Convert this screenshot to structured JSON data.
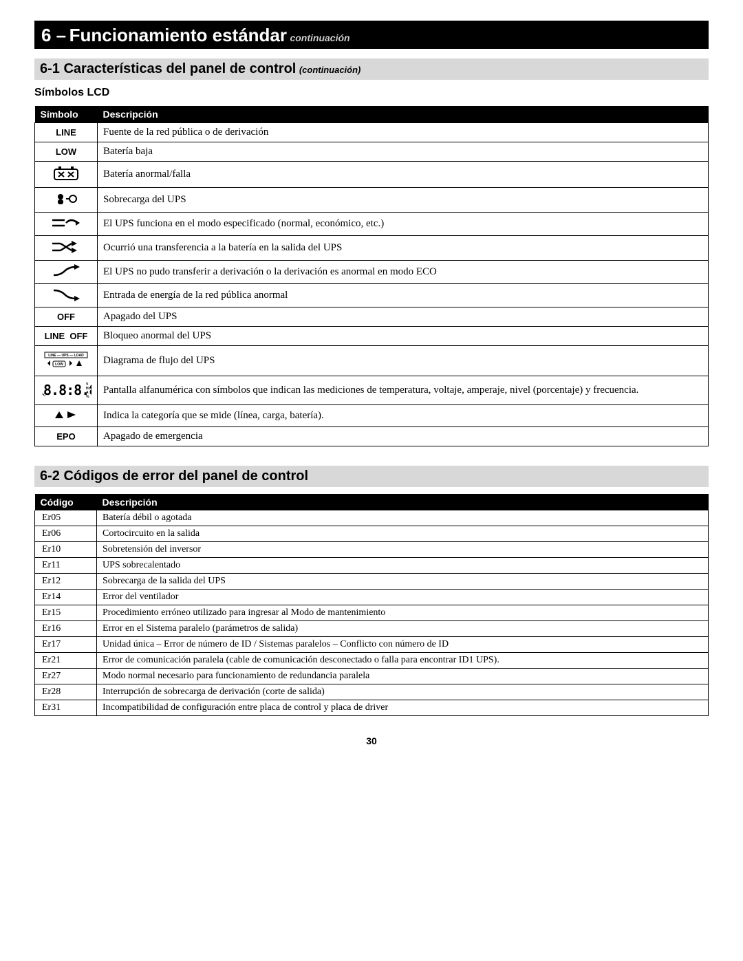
{
  "chapter": {
    "number": "6 –",
    "title": "Funcionamiento estándar",
    "continued": "continuación"
  },
  "section1": {
    "title": "6-1 Características del panel de control",
    "continued": "(continuación)",
    "subhead": "Símbolos LCD",
    "colA": "Símbolo",
    "colB": "Descripción",
    "rows": [
      {
        "symbol_text": "LINE",
        "icon": "text-line",
        "desc": "Fuente de la red pública o de derivación"
      },
      {
        "symbol_text": "LOW",
        "icon": "battery-low",
        "desc": "Batería baja"
      },
      {
        "symbol_text": "",
        "icon": "battery-fail",
        "desc": "Batería anormal/falla"
      },
      {
        "symbol_text": "",
        "icon": "overload",
        "desc": "Sobrecarga del UPS"
      },
      {
        "symbol_text": "",
        "icon": "mode-arrow",
        "desc": "El UPS funciona en el modo especificado (normal, económico, etc.)"
      },
      {
        "symbol_text": "",
        "icon": "cross-arrows",
        "desc": "Ocurrió una transferencia a la batería en la salida del UPS"
      },
      {
        "symbol_text": "",
        "icon": "wave-up",
        "desc": "El UPS no pudo transferir a derivación o la derivación es anormal en modo ECO"
      },
      {
        "symbol_text": "",
        "icon": "wave-down",
        "desc": "Entrada de energía de la red pública anormal"
      },
      {
        "symbol_text": "OFF",
        "icon": "text-off",
        "desc": "Apagado del UPS"
      },
      {
        "symbol_text": "LINE  OFF",
        "icon": "text-line-off",
        "desc": "Bloqueo anormal del UPS"
      },
      {
        "symbol_text": "",
        "icon": "flow-diagram",
        "desc": "Diagrama de flujo del UPS"
      },
      {
        "symbol_text": "",
        "icon": "seven-segment",
        "desc": "Pantalla alfanumérica con símbolos que indican las mediciones de temperatura, voltaje, amperaje, nivel (porcentaje) y frecuencia."
      },
      {
        "symbol_text": "",
        "icon": "triangles",
        "desc": "Indica la categoría que se mide (línea, carga, batería)."
      },
      {
        "symbol_text": "EPO",
        "icon": "text-epo",
        "desc": "Apagado de emergencia"
      }
    ]
  },
  "section2": {
    "title": "6-2 Códigos de error del panel de control",
    "colA": "Código",
    "colB": "Descripción",
    "rows": [
      {
        "code": "Er05",
        "desc": "Batería débil o agotada"
      },
      {
        "code": "Er06",
        "desc": "Cortocircuito en la salida"
      },
      {
        "code": "Er10",
        "desc": "Sobretensión del inversor"
      },
      {
        "code": "Er11",
        "desc": "UPS sobrecalentado"
      },
      {
        "code": "Er12",
        "desc": "Sobrecarga de la salida del UPS"
      },
      {
        "code": "Er14",
        "desc": "Error del ventilador"
      },
      {
        "code": "Er15",
        "desc": "Procedimiento erróneo utilizado para ingresar al Modo de mantenimiento"
      },
      {
        "code": "Er16",
        "desc": "Error en el Sistema paralelo (parámetros de salida)"
      },
      {
        "code": "Er17",
        "desc": "Unidad única – Error de número de ID / Sistemas paralelos – Conflicto con número de ID"
      },
      {
        "code": "Er21",
        "desc": "Error de comunicación paralela (cable de comunicación desconectado o falla para encontrar ID1 UPS)."
      },
      {
        "code": "Er27",
        "desc": "Modo normal necesario para funcionamiento de redundancia paralela"
      },
      {
        "code": "Er28",
        "desc": "Interrupción de sobrecarga de derivación (corte de salida)"
      },
      {
        "code": "Er31",
        "desc": "Incompatibilidad de configuración entre placa de control y placa de driver"
      }
    ]
  },
  "page_number": "30"
}
